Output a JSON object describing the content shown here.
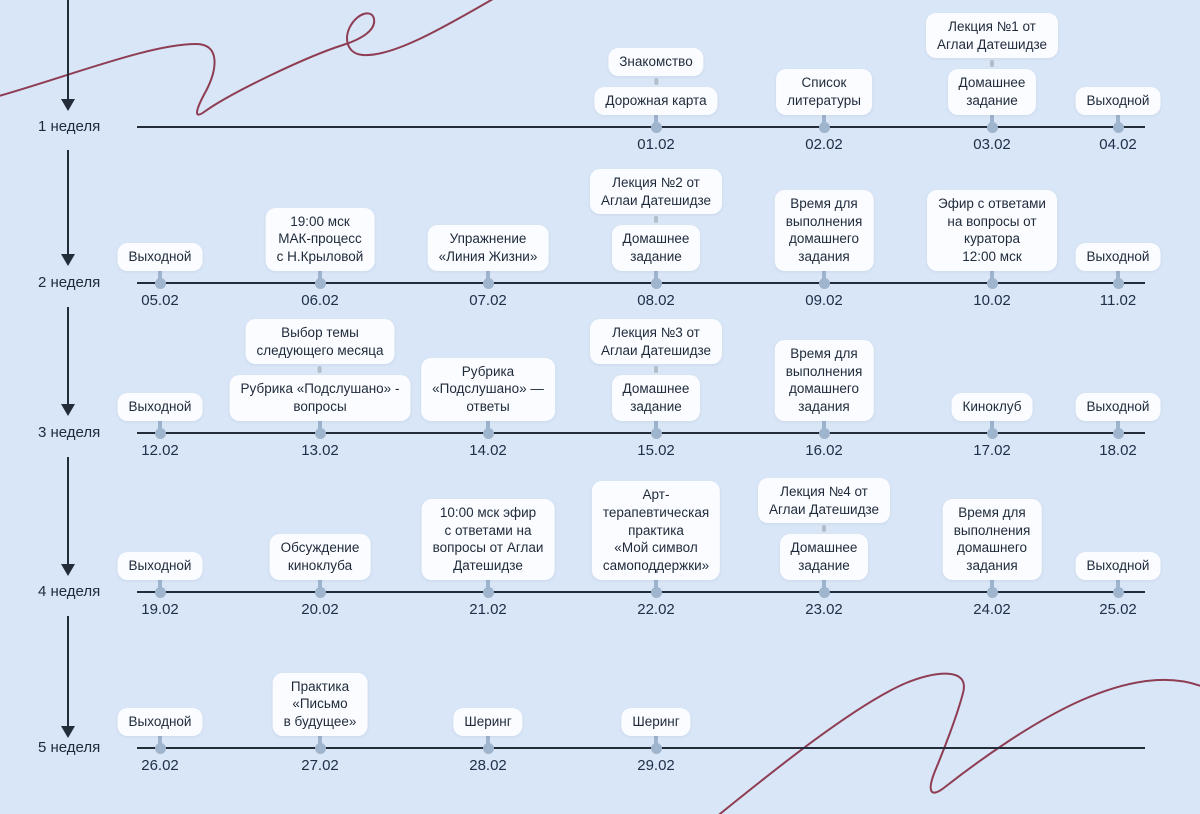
{
  "palette": {
    "background": "#d9e6f7",
    "card_bg": "#fbfcff",
    "line": "#232d3a",
    "dot": "#9fb5cd",
    "connector": "#b4bdca",
    "text_dark": "#1e2a3a",
    "date_text": "#20304a",
    "scribble": "#8e3d53"
  },
  "weeks": [
    {
      "label": "1 неделя",
      "points": [
        {
          "date": "01.02",
          "slot": 3,
          "cards": [
            "Знакомство",
            "Дорожная карта"
          ]
        },
        {
          "date": "02.02",
          "slot": 4,
          "cards": [
            "Список\nлитературы"
          ]
        },
        {
          "date": "03.02",
          "slot": 5,
          "cards": [
            "Лекция №1 от\nАглаи Датешидзе",
            "Домашнее\nзадание"
          ]
        },
        {
          "date": "04.02",
          "slot": 6,
          "cards": [
            "Выходной"
          ]
        }
      ]
    },
    {
      "label": "2 неделя",
      "points": [
        {
          "date": "05.02",
          "slot": 0,
          "cards": [
            "Выходной"
          ]
        },
        {
          "date": "06.02",
          "slot": 1,
          "cards": [
            "19:00 мск\nМАК-процесс\nс Н.Крыловой"
          ]
        },
        {
          "date": "07.02",
          "slot": 2,
          "cards": [
            "Упражнение\n«Линия Жизни»"
          ]
        },
        {
          "date": "08.02",
          "slot": 3,
          "cards": [
            "Лекция №2 от\nАглаи Датешидзе",
            "Домашнее\nзадание"
          ]
        },
        {
          "date": "09.02",
          "slot": 4,
          "cards": [
            "Время для\nвыполнения\nдомашнего\nзадания"
          ]
        },
        {
          "date": "10.02",
          "slot": 5,
          "cards": [
            "Эфир с ответами\nна вопросы от\nкуратора\n12:00 мск"
          ]
        },
        {
          "date": "11.02",
          "slot": 6,
          "cards": [
            "Выходной"
          ]
        }
      ]
    },
    {
      "label": "3 неделя",
      "points": [
        {
          "date": "12.02",
          "slot": 0,
          "cards": [
            "Выходной"
          ]
        },
        {
          "date": "13.02",
          "slot": 1,
          "cards": [
            "Выбор темы\nследующего месяца",
            "Рубрика «Подслушано» -\nвопросы"
          ]
        },
        {
          "date": "14.02",
          "slot": 2,
          "cards": [
            "Рубрика\n«Подслушано» —\nответы"
          ]
        },
        {
          "date": "15.02",
          "slot": 3,
          "cards": [
            "Лекция №3 от\nАглаи Датешидзе",
            "Домашнее\nзадание"
          ]
        },
        {
          "date": "16.02",
          "slot": 4,
          "cards": [
            "Время для\nвыполнения\nдомашнего\nзадания"
          ]
        },
        {
          "date": "17.02",
          "slot": 5,
          "cards": [
            "Киноклуб"
          ]
        },
        {
          "date": "18.02",
          "slot": 6,
          "cards": [
            "Выходной"
          ]
        }
      ]
    },
    {
      "label": "4 неделя",
      "points": [
        {
          "date": "19.02",
          "slot": 0,
          "cards": [
            "Выходной"
          ]
        },
        {
          "date": "20.02",
          "slot": 1,
          "cards": [
            "Обсуждение\nкиноклуба"
          ]
        },
        {
          "date": "21.02",
          "slot": 2,
          "cards": [
            "10:00 мск эфир\nс ответами на\nвопросы от Аглаи\nДатешидзе"
          ]
        },
        {
          "date": "22.02",
          "slot": 3,
          "cards": [
            "Арт-\nтерапевтическая\nпрактика\n«Мой символ\nсамоподдержки»"
          ]
        },
        {
          "date": "23.02",
          "slot": 4,
          "cards": [
            "Лекция №4 от\nАглаи Датешидзе",
            "Домашнее\nзадание"
          ]
        },
        {
          "date": "24.02",
          "slot": 5,
          "cards": [
            "Время для\nвыполнения\nдомашнего\nзадания"
          ]
        },
        {
          "date": "25.02",
          "slot": 6,
          "cards": [
            "Выходной"
          ]
        }
      ]
    },
    {
      "label": "5 неделя",
      "points": [
        {
          "date": "26.02",
          "slot": 0,
          "cards": [
            "Выходной"
          ]
        },
        {
          "date": "27.02",
          "slot": 1,
          "cards": [
            "Практика\n«Письмо\nв будущее»"
          ]
        },
        {
          "date": "28.02",
          "slot": 2,
          "cards": [
            "Шеринг"
          ]
        },
        {
          "date": "29.02",
          "slot": 3,
          "cards": [
            "Шеринг"
          ]
        }
      ]
    }
  ]
}
